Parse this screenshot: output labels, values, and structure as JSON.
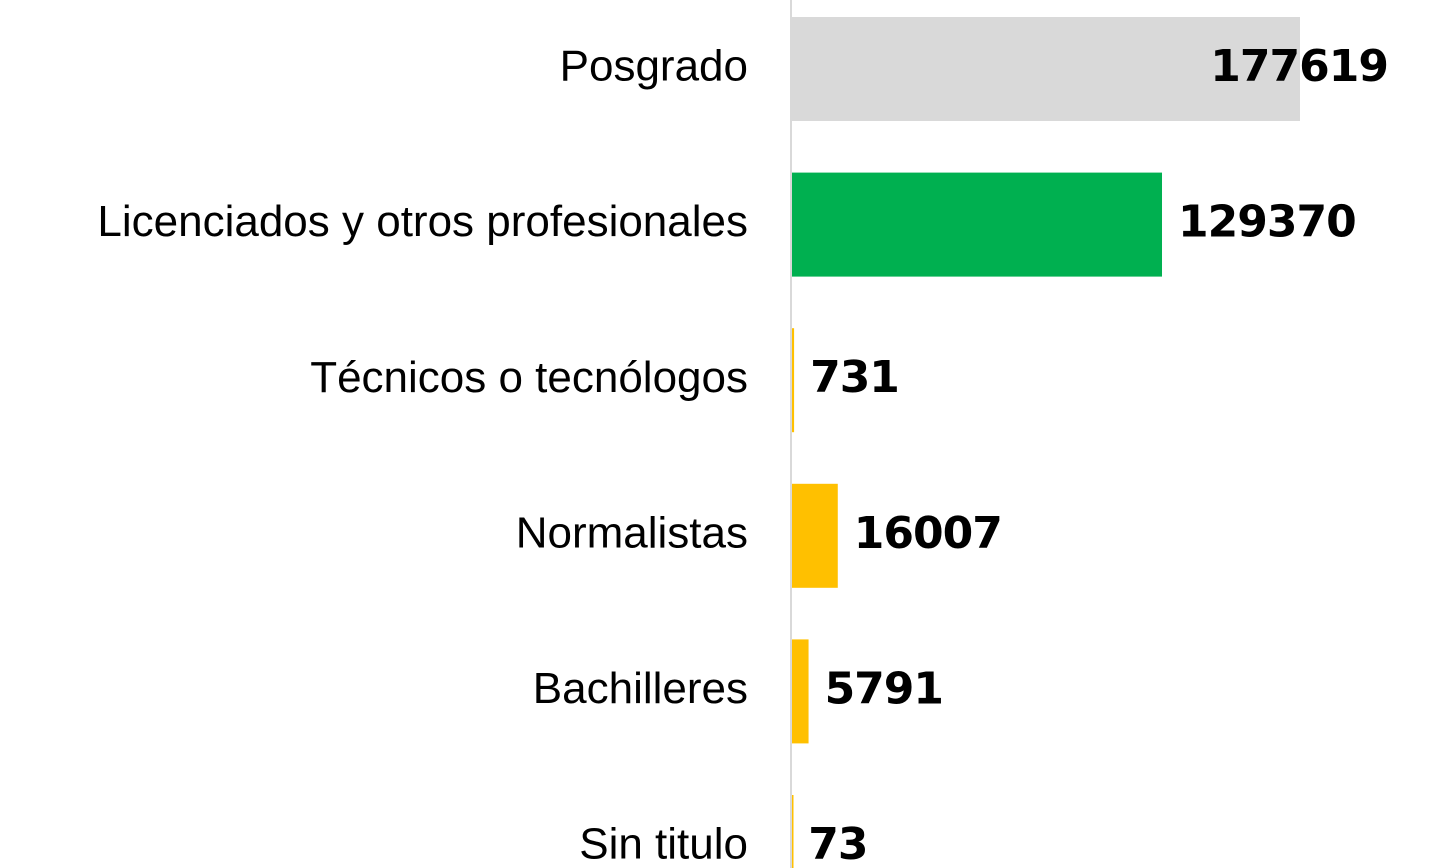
{
  "chart_data": {
    "type": "bar",
    "orientation": "horizontal",
    "categories": [
      "Posgrado",
      "Licenciados y otros profesionales",
      "Técnicos o tecnólogos",
      "Normalistas",
      "Bachilleres",
      "Sin titulo"
    ],
    "values": [
      177619,
      129370,
      731,
      16007,
      5791,
      73
    ],
    "colors": [
      "#d9d9d9",
      "#00b050",
      "#ffc000",
      "#ffc000",
      "#ffc000",
      "#ffc000"
    ]
  }
}
